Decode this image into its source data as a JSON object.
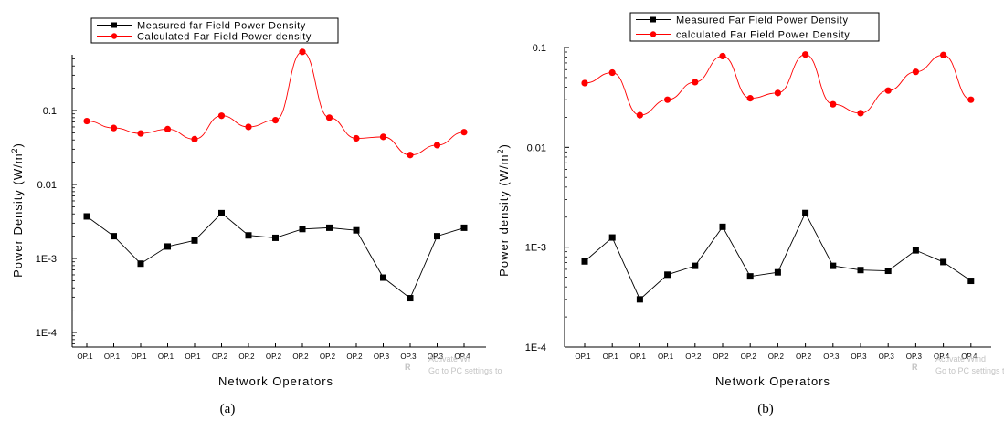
{
  "chart_data": [
    {
      "type": "line",
      "panel_label": "(a)",
      "xlabel": "Network Operators",
      "ylabel": "Power Density (W/m",
      "ylabel_sup": "2",
      "ylabel_close": ")",
      "yscale": "log",
      "ylim": [
        5e-05,
        0.9
      ],
      "yticks": [
        {
          "value": 0.1,
          "label": "0.1"
        },
        {
          "value": 0.01,
          "label": "0.01"
        },
        {
          "value": 0.001,
          "label": "1E-3"
        },
        {
          "value": 0.0001,
          "label": "1E-4"
        }
      ],
      "categories": [
        "OP.1",
        "OP.1",
        "OP.1",
        "OP.1",
        "OP.1",
        "OP.2",
        "OP.2",
        "OP.2",
        "OP.2",
        "OP.2",
        "OP.2",
        "OP.3",
        "OP.3",
        "OP.3",
        "OP.4"
      ],
      "series": [
        {
          "name": "Measured far Field Power Density",
          "color": "#000000",
          "marker": "square",
          "values": [
            0.0037,
            0.002,
            0.00085,
            0.00145,
            0.00175,
            0.0041,
            0.00205,
            0.0019,
            0.0025,
            0.0026,
            0.0024,
            0.00055,
            0.00029,
            0.002,
            0.0026
          ]
        },
        {
          "name": "Calculated Far Field Power density",
          "color": "#ff0000",
          "marker": "circle",
          "values": [
            0.072,
            0.058,
            0.049,
            0.056,
            0.041,
            0.085,
            0.06,
            0.074,
            0.62,
            0.08,
            0.042,
            0.044,
            0.025,
            0.034,
            0.051
          ]
        }
      ],
      "watermark": [
        "Activate Wi",
        "Go to PC settings to"
      ]
    },
    {
      "type": "line",
      "panel_label": "(b)",
      "xlabel": "Network Operators",
      "ylabel": "Power density (W/m",
      "ylabel_sup": "2",
      "ylabel_close": ")",
      "yscale": "log",
      "ylim": [
        0.0001,
        0.1
      ],
      "yticks": [
        {
          "value": 0.1,
          "label": "0.1"
        },
        {
          "value": 0.01,
          "label": "0.01"
        },
        {
          "value": 0.001,
          "label": "1E-3"
        },
        {
          "value": 0.0001,
          "label": "1E-4"
        }
      ],
      "categories": [
        "OP.1",
        "OP.1",
        "OP.1",
        "OP.1",
        "OP.2",
        "OP.2",
        "OP.2",
        "OP.2",
        "OP.2",
        "OP.3",
        "OP.3",
        "OP.3",
        "OP.3",
        "OP.4",
        "OP.4"
      ],
      "series": [
        {
          "name": "Measured Far Field Power Density",
          "color": "#000000",
          "marker": "square",
          "values": [
            0.00072,
            0.00125,
            0.0003,
            0.00053,
            0.00065,
            0.0016,
            0.00051,
            0.00056,
            0.0022,
            0.00065,
            0.00059,
            0.00058,
            0.00093,
            0.00071,
            0.00046
          ]
        },
        {
          "name": "calculated Far Field Power Density",
          "color": "#ff0000",
          "marker": "circle",
          "values": [
            0.044,
            0.056,
            0.021,
            0.03,
            0.045,
            0.082,
            0.031,
            0.035,
            0.085,
            0.027,
            0.022,
            0.037,
            0.057,
            0.084,
            0.03
          ]
        }
      ],
      "watermark": [
        "Activate Wind",
        "Go to PC settings to"
      ]
    }
  ]
}
